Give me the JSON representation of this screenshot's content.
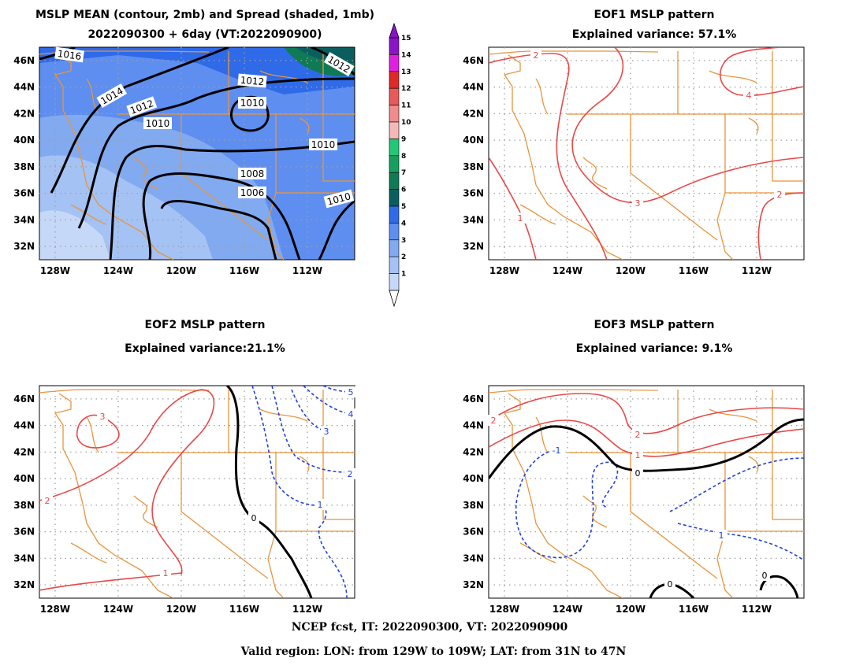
{
  "panels": [
    {
      "id": "mean",
      "title_line1": "MSLP MEAN (contour, 2mb) and Spread (shaded, 1mb)",
      "title_line2": "2022090300 + 6day (VT:2022090900)"
    },
    {
      "id": "eof1",
      "title_line1": "EOF1 MSLP pattern",
      "title_line2": "Explained variance: 57.1%"
    },
    {
      "id": "eof2",
      "title_line1": "EOF2 MSLP pattern",
      "title_line2": "Explained variance:21.1%"
    },
    {
      "id": "eof3",
      "title_line1": "EOF3 MSLP pattern",
      "title_line2": "Explained variance: 9.1%"
    }
  ],
  "axes": {
    "lon_ticks": [
      "128W",
      "124W",
      "120W",
      "116W",
      "112W"
    ],
    "lat_ticks": [
      "46N",
      "44N",
      "42N",
      "40N",
      "38N",
      "36N",
      "34N",
      "32N"
    ]
  },
  "colorbar": {
    "labels": [
      "1",
      "2",
      "3",
      "4",
      "5",
      "6",
      "7",
      "8",
      "9",
      "10",
      "11",
      "12",
      "13",
      "14",
      "15"
    ],
    "colors": [
      "#c6d8f8",
      "#a4c2f4",
      "#82aaf0",
      "#5e8ef0",
      "#2f6ae8",
      "#0b5e5e",
      "#0f7a55",
      "#16a060",
      "#22c878",
      "#f5b8b8",
      "#f08c8c",
      "#e85a5a",
      "#e02828",
      "#e020e0",
      "#8a14c8"
    ]
  },
  "mean_contour_labels": [
    "1016",
    "1014",
    "1012",
    "1012",
    "1010",
    "1010",
    "1010",
    "1008",
    "1006",
    "1010",
    "1012"
  ],
  "eof1_labels": [
    "2",
    "4",
    "3",
    "1",
    "2"
  ],
  "eof2_labels": [
    "3",
    "2",
    "1",
    "5",
    "4",
    "3",
    "2",
    "1",
    "0"
  ],
  "eof3_labels": [
    "2",
    "2",
    "1",
    "-1",
    "0",
    "1",
    "0",
    "0"
  ],
  "footer": {
    "line1": "NCEP fcst, IT: 2022090300, VT: 2022090900",
    "line2": "Valid region: LON: from 129W to 109W; LAT: from 31N to 47N"
  },
  "colors": {
    "positive": "#e84848",
    "negative": "#2040e0",
    "zero": "#000000",
    "border": "#e8953c",
    "grid": "#a0a0a0"
  }
}
